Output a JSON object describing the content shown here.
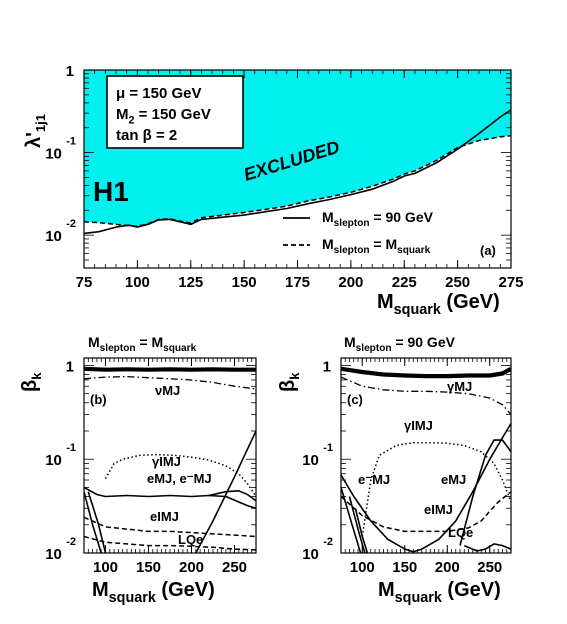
{
  "colors": {
    "excluded_fill": "#00f0f0",
    "line": "#000000"
  },
  "chart_data": [
    {
      "id": "a",
      "type": "line",
      "panel_label": "(a)",
      "experiment_logo": "H1",
      "ylabel": "λ'1j1",
      "ylabel_main": "λ'",
      "ylabel_sub": "1j1",
      "xlabel": "M squark (GeV)",
      "xlabel_main": "M",
      "xlabel_sub": "squark",
      "xlabel_unit": "(GeV)",
      "xlim": [
        75,
        275
      ],
      "ylim": [
        0.004,
        1
      ],
      "yscale": "log",
      "xticks": [
        75,
        100,
        125,
        150,
        175,
        200,
        225,
        250,
        275
      ],
      "yticks": [
        {
          "value": 1,
          "base": "1",
          "exp": ""
        },
        {
          "value": 0.1,
          "base": "10",
          "exp": "-1"
        },
        {
          "value": 0.01,
          "base": "10",
          "exp": "-2"
        }
      ],
      "params_box": [
        "μ = 150 GeV",
        "M2 = 150 GeV",
        "tan β = 2"
      ],
      "params_rows": [
        {
          "main": "μ = 150 GeV",
          "sub": "",
          "tail": ""
        },
        {
          "main": "M",
          "sub": "2",
          "tail": " = 150 GeV"
        },
        {
          "main": "tan β = 2",
          "sub": "",
          "tail": ""
        }
      ],
      "annotation": "EXCLUDED",
      "legend": [
        {
          "label_main": "M",
          "label_sub": "slepton",
          "label_tail": " = 90 GeV",
          "style": "solid"
        },
        {
          "label_main": "M",
          "label_sub": "slepton",
          "label_tail": " = M",
          "label_sub2": "squark",
          "style": "dashed"
        }
      ],
      "series": [
        {
          "name": "Mslepton = 90 GeV",
          "style": "solid",
          "x": [
            75,
            82,
            90,
            96,
            100,
            105,
            110,
            115,
            120,
            125,
            130,
            140,
            150,
            160,
            170,
            180,
            190,
            200,
            210,
            220,
            225,
            230,
            240,
            250,
            260,
            270,
            275
          ],
          "y": [
            0.0105,
            0.011,
            0.0125,
            0.0132,
            0.0125,
            0.0135,
            0.0153,
            0.0155,
            0.0145,
            0.0135,
            0.0155,
            0.0165,
            0.0175,
            0.0192,
            0.021,
            0.024,
            0.027,
            0.031,
            0.036,
            0.045,
            0.052,
            0.056,
            0.075,
            0.11,
            0.17,
            0.27,
            0.33
          ]
        },
        {
          "name": "Mslepton = Msquark",
          "style": "dashed",
          "x": [
            75,
            82,
            90,
            96,
            100,
            105,
            110,
            115,
            120,
            125,
            130,
            140,
            150,
            160,
            170,
            180,
            190,
            200,
            210,
            220,
            225,
            230,
            240,
            250,
            260,
            270,
            275
          ],
          "y": [
            0.0145,
            0.0142,
            0.0135,
            0.013,
            0.0128,
            0.0138,
            0.0155,
            0.0158,
            0.0148,
            0.014,
            0.0162,
            0.0175,
            0.0188,
            0.0205,
            0.0225,
            0.026,
            0.029,
            0.033,
            0.039,
            0.048,
            0.055,
            0.06,
            0.08,
            0.115,
            0.14,
            0.155,
            0.16
          ]
        }
      ]
    },
    {
      "id": "b",
      "type": "line",
      "panel_label": "(b)",
      "title_main": "M",
      "title_sub": "slepton",
      "title_tail": " = M",
      "title_sub2": "squark",
      "ylabel": "βk",
      "ylabel_main": "β",
      "ylabel_sub": "k",
      "xlabel_main": "M",
      "xlabel_sub": "squark",
      "xlabel_unit": "(GeV)",
      "xlim": [
        75,
        275
      ],
      "ylim": [
        0.01,
        1.2
      ],
      "yscale": "log",
      "xticks": [
        100,
        150,
        200,
        250
      ],
      "yticks": [
        {
          "value": 1,
          "base": "1",
          "exp": ""
        },
        {
          "value": 0.1,
          "base": "10",
          "exp": "-1"
        },
        {
          "value": 0.01,
          "base": "10",
          "exp": "-2"
        }
      ],
      "labels": [
        "νMJ",
        "γIMJ",
        "eMJ, e⁻MJ",
        "eIMJ",
        "LQe"
      ],
      "series": [
        {
          "name": "thick",
          "style": "thick",
          "x": [
            75,
            100,
            125,
            150,
            175,
            200,
            225,
            250,
            275
          ],
          "y": [
            0.92,
            0.9,
            0.91,
            0.9,
            0.91,
            0.9,
            0.91,
            0.9,
            0.9
          ]
        },
        {
          "name": "νMJ",
          "style": "dashdot",
          "x": [
            75,
            100,
            125,
            150,
            175,
            200,
            225,
            250,
            275
          ],
          "y": [
            0.72,
            0.75,
            0.76,
            0.74,
            0.72,
            0.7,
            0.66,
            0.6,
            0.56
          ]
        },
        {
          "name": "γIMJ",
          "style": "dotted",
          "x": [
            100,
            110,
            120,
            140,
            160,
            180,
            200,
            220,
            240,
            255,
            265,
            275
          ],
          "y": [
            0.062,
            0.09,
            0.1,
            0.11,
            0.112,
            0.11,
            0.105,
            0.098,
            0.085,
            0.07,
            0.055,
            0.04
          ]
        },
        {
          "name": "eMJ, e⁻MJ",
          "style": "solid",
          "x": [
            75,
            90,
            100,
            125,
            150,
            175,
            200,
            220,
            240,
            255,
            265,
            275
          ],
          "y": [
            0.05,
            0.042,
            0.04,
            0.041,
            0.04,
            0.041,
            0.04,
            0.041,
            0.04,
            0.035,
            0.032,
            0.03
          ]
        },
        {
          "name": "eMJ, e⁻MJ 2",
          "style": "solid",
          "x": [
            220,
            240,
            255,
            265,
            275
          ],
          "y": [
            0.041,
            0.045,
            0.046,
            0.042,
            0.036
          ]
        },
        {
          "name": "eIMJ",
          "style": "dashed",
          "x": [
            75,
            100,
            125,
            150,
            175,
            200,
            225,
            250,
            275
          ],
          "y": [
            0.024,
            0.019,
            0.018,
            0.017,
            0.017,
            0.0165,
            0.016,
            0.0155,
            0.015
          ]
        },
        {
          "name": "LQe",
          "style": "dashed",
          "x": [
            75,
            100,
            125,
            150,
            175,
            200,
            225,
            250,
            275
          ],
          "y": [
            0.015,
            0.013,
            0.0125,
            0.012,
            0.012,
            0.0118,
            0.0115,
            0.011,
            0.0108
          ]
        },
        {
          "name": "rising",
          "style": "solid",
          "x": [
            205,
            225,
            250,
            275
          ],
          "y": [
            0.01,
            0.022,
            0.065,
            0.2
          ]
        },
        {
          "name": "left falling 1",
          "style": "solid",
          "x": [
            75,
            85,
            95
          ],
          "y": [
            0.045,
            0.02,
            0.01
          ]
        },
        {
          "name": "left falling 2",
          "style": "solid",
          "x": [
            80,
            92,
            100
          ],
          "y": [
            0.045,
            0.02,
            0.01
          ]
        }
      ]
    },
    {
      "id": "c",
      "type": "line",
      "panel_label": "(c)",
      "title_main": "M",
      "title_sub": "slepton",
      "title_tail": " = 90 GeV",
      "ylabel": "βk",
      "ylabel_main": "β",
      "ylabel_sub": "k",
      "xlabel_main": "M",
      "xlabel_sub": "squark",
      "xlabel_unit": "(GeV)",
      "xlim": [
        75,
        275
      ],
      "ylim": [
        0.01,
        1.2
      ],
      "yscale": "log",
      "xticks": [
        100,
        150,
        200,
        250
      ],
      "yticks": [
        {
          "value": 1,
          "base": "1",
          "exp": ""
        },
        {
          "value": 0.1,
          "base": "10",
          "exp": "-1"
        },
        {
          "value": 0.01,
          "base": "10",
          "exp": "-2"
        }
      ],
      "labels": [
        "γMJ",
        "γIMJ",
        "e⁻MJ",
        "eMJ",
        "eIMJ",
        "LQe"
      ],
      "series": [
        {
          "name": "thick",
          "style": "thick",
          "x": [
            75,
            100,
            125,
            150,
            175,
            200,
            225,
            250,
            265,
            275
          ],
          "y": [
            0.92,
            0.85,
            0.8,
            0.78,
            0.77,
            0.77,
            0.78,
            0.78,
            0.82,
            0.92
          ]
        },
        {
          "name": "γMJ",
          "style": "dashdot",
          "x": [
            75,
            100,
            125,
            150,
            175,
            200,
            225,
            250,
            265,
            275
          ],
          "y": [
            0.75,
            0.6,
            0.55,
            0.53,
            0.53,
            0.52,
            0.5,
            0.45,
            0.38,
            0.3
          ]
        },
        {
          "name": "γIMJ",
          "style": "dotted",
          "x": [
            100,
            110,
            120,
            140,
            160,
            180,
            200,
            220,
            240,
            255,
            265,
            275
          ],
          "y": [
            0.015,
            0.06,
            0.11,
            0.14,
            0.15,
            0.15,
            0.148,
            0.14,
            0.12,
            0.09,
            0.06,
            0.035
          ]
        },
        {
          "name": "e⁻MJ",
          "style": "solid",
          "x": [
            75,
            90,
            110,
            130,
            150,
            160,
            170,
            190,
            210,
            230,
            250,
            265,
            275
          ],
          "y": [
            0.068,
            0.04,
            0.022,
            0.014,
            0.011,
            0.0103,
            0.011,
            0.014,
            0.022,
            0.045,
            0.1,
            0.17,
            0.24
          ]
        },
        {
          "name": "eMJ",
          "style": "solid",
          "x": [
            215,
            230,
            245,
            255,
            265,
            275
          ],
          "y": [
            0.012,
            0.04,
            0.11,
            0.16,
            0.16,
            0.12
          ]
        },
        {
          "name": "eIMJ",
          "style": "dashed",
          "x": [
            75,
            100,
            125,
            150,
            175,
            200,
            225,
            240,
            250,
            260,
            275
          ],
          "y": [
            0.04,
            0.025,
            0.019,
            0.017,
            0.017,
            0.017,
            0.0185,
            0.022,
            0.028,
            0.035,
            0.045
          ]
        },
        {
          "name": "LQe",
          "style": "solid",
          "x": [
            220,
            235,
            245,
            255,
            265,
            275
          ],
          "y": [
            0.012,
            0.0105,
            0.011,
            0.0125,
            0.012,
            0.011
          ]
        },
        {
          "name": "left falling 1",
          "style": "solid",
          "x": [
            75,
            88,
            98
          ],
          "y": [
            0.05,
            0.02,
            0.01
          ]
        },
        {
          "name": "left falling 2",
          "style": "solid",
          "x": [
            85,
            95,
            103
          ],
          "y": [
            0.04,
            0.018,
            0.01
          ]
        },
        {
          "name": "left falling 3",
          "style": "solid",
          "x": [
            92,
            100,
            106
          ],
          "y": [
            0.03,
            0.015,
            0.01
          ]
        }
      ]
    }
  ]
}
